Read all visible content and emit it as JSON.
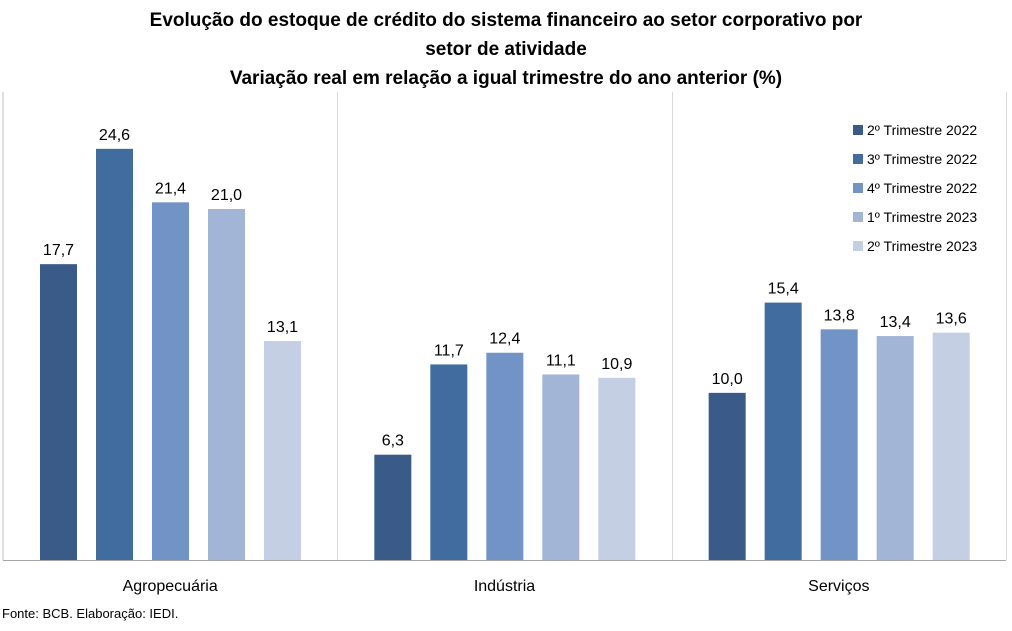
{
  "title_lines": [
    "Evolução do estoque de crédito do sistema financeiro ao setor corporativo por",
    "setor de atividade",
    "Variação real em relação a igual trimestre do ano anterior (%)"
  ],
  "source": "Fonte: BCB. Elaboração: IEDI.",
  "colors": [
    "#3a5a87",
    "#416ca0",
    "#7293c5",
    "#a3b5d6",
    "#c5cfe3"
  ],
  "chart_data": {
    "type": "bar",
    "title": "Evolução do estoque de crédito do sistema financeiro ao setor corporativo por setor de atividade",
    "subtitle": "Variação real em relação a igual trimestre do ano anterior (%)",
    "categories": [
      "Agropecuária",
      "Indústria",
      "Serviços"
    ],
    "series": [
      {
        "name": "2º Trimestre 2022",
        "values": [
          17.7,
          6.3,
          10.0
        ],
        "labels": [
          "17,7",
          "6,3",
          "10,0"
        ]
      },
      {
        "name": "3º Trimestre 2022",
        "values": [
          24.6,
          11.7,
          15.4
        ],
        "labels": [
          "24,6",
          "11,7",
          "15,4"
        ]
      },
      {
        "name": "4º Trimestre 2022",
        "values": [
          21.4,
          12.4,
          13.8
        ],
        "labels": [
          "21,4",
          "12,4",
          "13,8"
        ]
      },
      {
        "name": "1º Trimestre 2023",
        "values": [
          21.0,
          11.1,
          13.4
        ],
        "labels": [
          "21,0",
          "11,1",
          "13,4"
        ]
      },
      {
        "name": "2º Trimestre 2023",
        "values": [
          13.1,
          10.9,
          13.6
        ],
        "labels": [
          "13,1",
          "10,9",
          "13,6"
        ]
      }
    ],
    "ylim": [
      0,
      28
    ],
    "legend_position": "top-right",
    "grid": false
  }
}
